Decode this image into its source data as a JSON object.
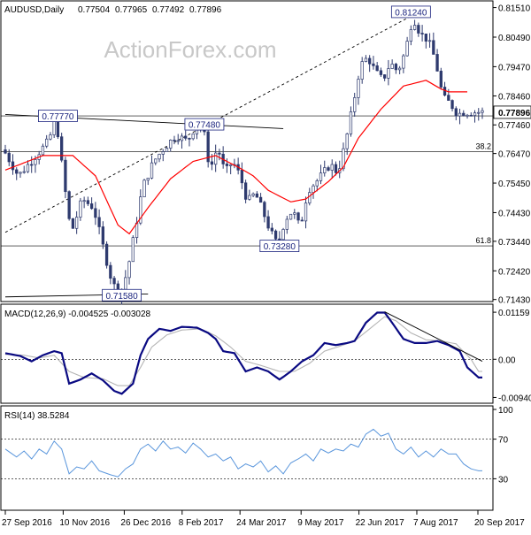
{
  "chart_data": [
    {
      "type": "candlestick",
      "symbol_title": "AUDUSD,Daily",
      "ohlc": [
        "0.77504",
        "0.77965",
        "0.77492",
        "0.77896"
      ],
      "watermark": "ActionForex.com",
      "current_price": "0.77896",
      "y_ticks": [
        {
          "label": "0.81510",
          "v": 0.8151
        },
        {
          "label": "0.80490",
          "v": 0.8049
        },
        {
          "label": "0.79470",
          "v": 0.7947
        },
        {
          "label": "0.78460",
          "v": 0.7846
        },
        {
          "label": "0.77460",
          "v": 0.7746
        },
        {
          "label": "0.76470",
          "v": 0.7647
        },
        {
          "label": "0.75450",
          "v": 0.7545
        },
        {
          "label": "0.74430",
          "v": 0.7443
        },
        {
          "label": "0.73440",
          "v": 0.7344
        },
        {
          "label": "0.72420",
          "v": 0.7242
        },
        {
          "label": "0.71430",
          "v": 0.7143
        }
      ],
      "ylim": [
        0.7139,
        0.8165
      ],
      "annotations": [
        {
          "text": "0.81240",
          "v": 0.8124,
          "i": 108
        },
        {
          "text": "0.77770",
          "v": 0.7777,
          "i": 14
        },
        {
          "text": "0.77480",
          "v": 0.7748,
          "i": 53
        },
        {
          "text": "0.73280",
          "v": 0.7328,
          "i": 73
        },
        {
          "text": "0.71580",
          "v": 0.7158,
          "i": 31
        }
      ],
      "fib_levels": [
        {
          "label": "38.2",
          "v": 0.7654
        },
        {
          "label": "61.8",
          "v": 0.7328
        }
      ],
      "horizontal_lines": [
        0.7777
      ],
      "ma_anchors": [
        [
          0,
          0.759
        ],
        [
          10,
          0.764
        ],
        [
          18,
          0.764
        ],
        [
          24,
          0.757
        ],
        [
          30,
          0.74
        ],
        [
          33,
          0.737
        ],
        [
          38,
          0.746
        ],
        [
          44,
          0.756
        ],
        [
          50,
          0.762
        ],
        [
          56,
          0.764
        ],
        [
          62,
          0.76
        ],
        [
          66,
          0.757
        ],
        [
          70,
          0.752
        ],
        [
          76,
          0.748
        ],
        [
          80,
          0.749
        ],
        [
          86,
          0.755
        ],
        [
          90,
          0.76
        ],
        [
          94,
          0.77
        ],
        [
          100,
          0.78
        ],
        [
          106,
          0.788
        ],
        [
          112,
          0.79
        ],
        [
          116,
          0.787
        ],
        [
          118,
          0.786
        ]
      ],
      "trendlines": [
        {
          "name": "rising",
          "from": [
            0,
            0.7375
          ],
          "to": [
            110,
            0.8135
          ],
          "dashed": true
        },
        {
          "name": "upper",
          "from": [
            0,
            0.7782
          ],
          "to": [
            74,
            0.7733
          ],
          "dashed": false
        },
        {
          "name": "lower",
          "from": [
            0,
            0.7152
          ],
          "to": [
            38,
            0.7162
          ],
          "dashed": false
        }
      ]
    },
    {
      "type": "line",
      "title": "MACD(12,26,9) -0.004525 -0.003028",
      "y_ticks": [
        {
          "label": "0.01159",
          "v": 0.01159
        },
        {
          "label": "0.00",
          "v": 0.0
        },
        {
          "label": "-0.009408",
          "v": -0.009408
        }
      ],
      "ylim": [
        -0.0104,
        0.0127
      ],
      "macd_anchors": [
        [
          0,
          0.0015
        ],
        [
          4,
          0.0008
        ],
        [
          7,
          -0.0005
        ],
        [
          10,
          0.001
        ],
        [
          13,
          0.002
        ],
        [
          15,
          0.0015
        ],
        [
          17,
          -0.006
        ],
        [
          20,
          -0.005
        ],
        [
          23,
          -0.0035
        ],
        [
          26,
          -0.0052
        ],
        [
          29,
          -0.0078
        ],
        [
          31,
          -0.0085
        ],
        [
          34,
          -0.006
        ],
        [
          36,
          0.001
        ],
        [
          38,
          0.005
        ],
        [
          41,
          0.0075
        ],
        [
          44,
          0.007
        ],
        [
          47,
          0.008
        ],
        [
          51,
          0.0078
        ],
        [
          54,
          0.0065
        ],
        [
          56,
          0.005
        ],
        [
          58,
          0.002
        ],
        [
          61,
          0.0015
        ],
        [
          64,
          -0.003
        ],
        [
          67,
          -0.002
        ],
        [
          70,
          -0.003
        ],
        [
          73,
          -0.005
        ],
        [
          76,
          -0.003
        ],
        [
          79,
          -0.0005
        ],
        [
          82,
          0.001
        ],
        [
          85,
          0.004
        ],
        [
          88,
          0.0035
        ],
        [
          91,
          0.004
        ],
        [
          93,
          0.0045
        ],
        [
          96,
          0.009
        ],
        [
          99,
          0.0115
        ],
        [
          101,
          0.0115
        ],
        [
          103,
          0.009
        ],
        [
          106,
          0.005
        ],
        [
          109,
          0.004
        ],
        [
          112,
          0.004
        ],
        [
          115,
          0.0045
        ],
        [
          118,
          0.0035
        ],
        [
          121,
          0.002
        ],
        [
          123,
          -0.002
        ],
        [
          126,
          -0.0045
        ]
      ],
      "signal_anchors": [
        [
          0,
          0.0012
        ],
        [
          5,
          0.001
        ],
        [
          9,
          0.0003
        ],
        [
          13,
          0.001
        ],
        [
          17,
          -0.003
        ],
        [
          21,
          -0.0045
        ],
        [
          26,
          -0.0048
        ],
        [
          30,
          -0.0065
        ],
        [
          33,
          -0.0065
        ],
        [
          36,
          -0.002
        ],
        [
          39,
          0.003
        ],
        [
          43,
          0.006
        ],
        [
          47,
          0.0072
        ],
        [
          52,
          0.0075
        ],
        [
          56,
          0.0058
        ],
        [
          60,
          0.003
        ],
        [
          64,
          -0.0005
        ],
        [
          68,
          -0.0015
        ],
        [
          73,
          -0.003
        ],
        [
          77,
          -0.003
        ],
        [
          81,
          -0.001
        ],
        [
          85,
          0.002
        ],
        [
          89,
          0.0032
        ],
        [
          93,
          0.0045
        ],
        [
          97,
          0.0075
        ],
        [
          101,
          0.0105
        ],
        [
          104,
          0.0095
        ],
        [
          108,
          0.0065
        ],
        [
          112,
          0.0048
        ],
        [
          116,
          0.0045
        ],
        [
          120,
          0.0038
        ],
        [
          124,
          0.0
        ],
        [
          126,
          -0.003
        ]
      ],
      "trendline": {
        "from": [
          101,
          0.0117
        ],
        "to": [
          127,
          -0.0005
        ]
      }
    },
    {
      "type": "line",
      "title": "RSI(14) 38.5284",
      "y_ticks": [
        {
          "label": "100",
          "v": 100
        },
        {
          "label": "70",
          "v": 70
        },
        {
          "label": "30",
          "v": 30
        }
      ],
      "ylim": [
        0,
        100
      ],
      "rsi_anchors": [
        [
          0,
          60
        ],
        [
          3,
          52
        ],
        [
          5,
          58
        ],
        [
          7,
          50
        ],
        [
          9,
          60
        ],
        [
          11,
          55
        ],
        [
          13,
          68
        ],
        [
          15,
          60
        ],
        [
          17,
          35
        ],
        [
          19,
          42
        ],
        [
          21,
          40
        ],
        [
          23,
          48
        ],
        [
          25,
          38
        ],
        [
          28,
          34
        ],
        [
          30,
          32
        ],
        [
          32,
          40
        ],
        [
          34,
          45
        ],
        [
          36,
          60
        ],
        [
          38,
          65
        ],
        [
          40,
          58
        ],
        [
          42,
          68
        ],
        [
          44,
          60
        ],
        [
          46,
          62
        ],
        [
          48,
          56
        ],
        [
          50,
          66
        ],
        [
          52,
          60
        ],
        [
          54,
          52
        ],
        [
          56,
          55
        ],
        [
          58,
          48
        ],
        [
          60,
          52
        ],
        [
          62,
          40
        ],
        [
          64,
          45
        ],
        [
          66,
          42
        ],
        [
          68,
          48
        ],
        [
          70,
          37
        ],
        [
          72,
          43
        ],
        [
          74,
          35
        ],
        [
          76,
          46
        ],
        [
          78,
          50
        ],
        [
          80,
          55
        ],
        [
          82,
          48
        ],
        [
          84,
          60
        ],
        [
          86,
          56
        ],
        [
          88,
          60
        ],
        [
          90,
          58
        ],
        [
          92,
          65
        ],
        [
          94,
          62
        ],
        [
          96,
          75
        ],
        [
          98,
          80
        ],
        [
          100,
          73
        ],
        [
          102,
          76
        ],
        [
          104,
          60
        ],
        [
          106,
          55
        ],
        [
          108,
          62
        ],
        [
          110,
          52
        ],
        [
          112,
          58
        ],
        [
          114,
          52
        ],
        [
          116,
          60
        ],
        [
          118,
          55
        ],
        [
          120,
          55
        ],
        [
          122,
          45
        ],
        [
          124,
          40
        ],
        [
          126,
          38
        ]
      ]
    }
  ],
  "x_axis": {
    "tick_labels": [
      {
        "label": "27 Sep 2016",
        "i": 0
      },
      {
        "label": "10 Nov 2016",
        "i": 18
      },
      {
        "label": "26 Dec 2016",
        "i": 37
      },
      {
        "label": "8 Feb 2017",
        "i": 55
      },
      {
        "label": "24 Mar 2017",
        "i": 73
      },
      {
        "label": "9 May 2017",
        "i": 92
      },
      {
        "label": "22 Jun 2017",
        "i": 110
      },
      {
        "label": "7 Aug 2017",
        "i": 128
      },
      {
        "label": "20 Sep 2017",
        "i": 147
      }
    ],
    "bar_count": 128
  },
  "price_path": [
    [
      0,
      0.766
    ],
    [
      4,
      0.757
    ],
    [
      8,
      0.763
    ],
    [
      12,
      0.769
    ],
    [
      14,
      0.777
    ],
    [
      16,
      0.756
    ],
    [
      18,
      0.737
    ],
    [
      21,
      0.749
    ],
    [
      24,
      0.746
    ],
    [
      27,
      0.73
    ],
    [
      29,
      0.72
    ],
    [
      31,
      0.716
    ],
    [
      33,
      0.724
    ],
    [
      35,
      0.738
    ],
    [
      37,
      0.753
    ],
    [
      40,
      0.762
    ],
    [
      43,
      0.767
    ],
    [
      46,
      0.771
    ],
    [
      49,
      0.769
    ],
    [
      51,
      0.774
    ],
    [
      53,
      0.775
    ],
    [
      55,
      0.759
    ],
    [
      57,
      0.767
    ],
    [
      59,
      0.758
    ],
    [
      61,
      0.762
    ],
    [
      63,
      0.757
    ],
    [
      65,
      0.748
    ],
    [
      67,
      0.751
    ],
    [
      69,
      0.745
    ],
    [
      71,
      0.738
    ],
    [
      73,
      0.733
    ],
    [
      75,
      0.742
    ],
    [
      77,
      0.745
    ],
    [
      79,
      0.739
    ],
    [
      81,
      0.752
    ],
    [
      84,
      0.756
    ],
    [
      87,
      0.761
    ],
    [
      89,
      0.758
    ],
    [
      91,
      0.768
    ],
    [
      93,
      0.781
    ],
    [
      95,
      0.795
    ],
    [
      97,
      0.798
    ],
    [
      99,
      0.793
    ],
    [
      101,
      0.79
    ],
    [
      103,
      0.796
    ],
    [
      105,
      0.793
    ],
    [
      107,
      0.8
    ],
    [
      109,
      0.812
    ],
    [
      111,
      0.806
    ],
    [
      113,
      0.804
    ],
    [
      115,
      0.797
    ],
    [
      117,
      0.784
    ],
    [
      119,
      0.782
    ],
    [
      121,
      0.778
    ],
    [
      122,
      0.779
    ]
  ],
  "colors": {
    "candle": "#2e3a6e",
    "ma": "#ff0000",
    "macd": "#0a0a82",
    "signal": "#b4b4b4",
    "rsi": "#5a96dc",
    "grid_line": "#000000",
    "watermark": "#c8c8c8"
  }
}
